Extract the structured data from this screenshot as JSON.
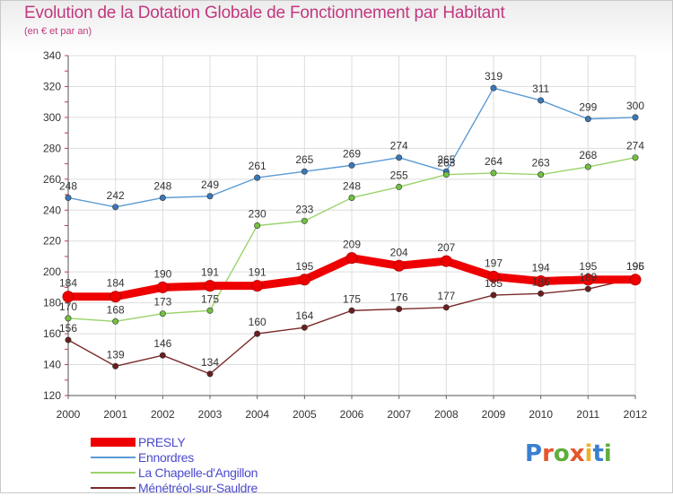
{
  "title": "Evolution de la Dotation Globale de Fonctionnement par Habitant",
  "subtitle": "(en € et par an)",
  "brand": {
    "text": "Proxiti",
    "letter_colors": [
      "#3a7fd0",
      "#e8542c",
      "#5fae3a",
      "#e8542c",
      "#f0b02a",
      "#3a7fd0",
      "#5fae3a"
    ]
  },
  "chart_data": {
    "type": "line",
    "x": [
      "2000",
      "2001",
      "2002",
      "2003",
      "2004",
      "2005",
      "2006",
      "2007",
      "2008",
      "2009",
      "2010",
      "2011",
      "2012"
    ],
    "ylim": [
      120,
      340
    ],
    "yticks": [
      120,
      140,
      160,
      180,
      200,
      220,
      240,
      260,
      280,
      300,
      320,
      340
    ],
    "grid": true,
    "legend_position": "bottom-left",
    "series": [
      {
        "name": "Ennordres",
        "color": "#5b9bd5",
        "point_color": "#3a78b8",
        "emphasis": false,
        "values": [
          248,
          242,
          248,
          249,
          261,
          265,
          269,
          274,
          265,
          319,
          311,
          299,
          300
        ],
        "labels": [
          "248",
          "242",
          "248",
          "249",
          "261",
          "265",
          "269",
          "274",
          "265",
          "319",
          "311",
          "299",
          "300"
        ]
      },
      {
        "name": "La Chapelle-d'Angillon",
        "color": "#9ad36a",
        "point_color": "#72c143",
        "emphasis": false,
        "values": [
          170,
          168,
          173,
          175,
          230,
          233,
          248,
          255,
          263,
          264,
          263,
          268,
          274
        ],
        "labels": [
          "170",
          "168",
          "173",
          "175",
          "230",
          "233",
          "248",
          "255",
          "263",
          "264",
          "263",
          "268",
          "274"
        ]
      },
      {
        "name": "Ménétréol-sur-Sauldre",
        "color": "#7b2a2a",
        "point_color": "#6a1f1f",
        "emphasis": false,
        "values": [
          156,
          139,
          146,
          134,
          160,
          164,
          175,
          176,
          177,
          185,
          186,
          189,
          196
        ],
        "labels": [
          "156",
          "139",
          "146",
          "134",
          "160",
          "164",
          "175",
          "176",
          "177",
          "185",
          "186",
          "189",
          "196"
        ]
      },
      {
        "name": "PRESLY",
        "color": "#ee0000",
        "point_color": "#ee0000",
        "emphasis": true,
        "values": [
          184,
          184,
          190,
          191,
          191,
          195,
          209,
          204,
          207,
          197,
          194,
          195,
          195
        ],
        "labels": [
          "184",
          "184",
          "190",
          "191",
          "191",
          "195",
          "209",
          "204",
          "207",
          "197",
          "194",
          "195",
          "195"
        ]
      }
    ],
    "legend": [
      "PRESLY",
      "Ennordres",
      "La Chapelle-d'Angillon",
      "Ménétréol-sur-Sauldre"
    ]
  }
}
